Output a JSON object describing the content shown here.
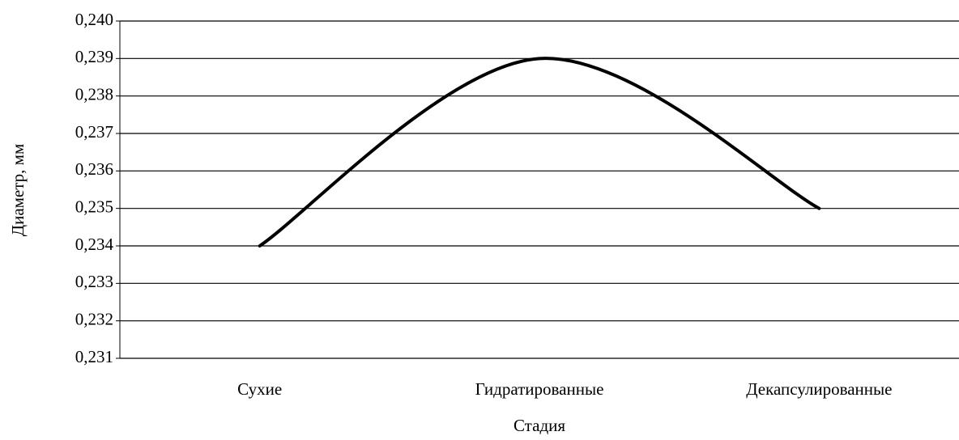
{
  "chart_data": {
    "type": "line",
    "categories": [
      "Сухие",
      "Гидратированные",
      "Декапсулированные"
    ],
    "series": [
      {
        "name": "Диаметр",
        "color": "#000000",
        "values": [
          0.234,
          0.239,
          0.235
        ]
      }
    ],
    "ylim": [
      0.231,
      0.24
    ],
    "yticks": [
      {
        "value": 0.231,
        "label": "0,231"
      },
      {
        "value": 0.232,
        "label": "0,232"
      },
      {
        "value": 0.233,
        "label": "0,233"
      },
      {
        "value": 0.234,
        "label": "0,234"
      },
      {
        "value": 0.235,
        "label": "0,235"
      },
      {
        "value": 0.236,
        "label": "0,236"
      },
      {
        "value": 0.237,
        "label": "0,237"
      },
      {
        "value": 0.238,
        "label": "0,238"
      },
      {
        "value": 0.239,
        "label": "0,239"
      },
      {
        "value": 0.24,
        "label": "0,240"
      }
    ],
    "y_label": "Диаметр, мм",
    "x_label": "Стадия",
    "grid": true,
    "smooth": true
  }
}
